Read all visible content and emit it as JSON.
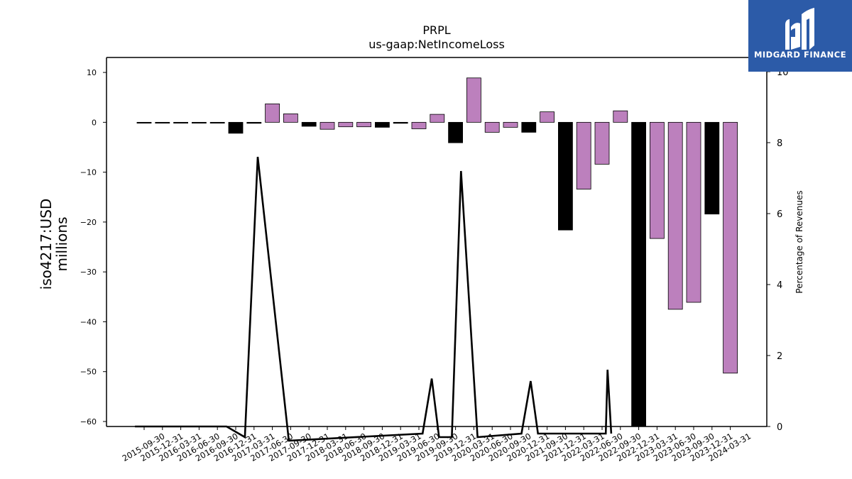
{
  "chart_data": {
    "type": "bar",
    "title": "PRPL",
    "subtitle": "us-gaap:NetIncomeLoss",
    "ylabel": "iso4217:USD\nmillions",
    "y2label": "Percentage of Revenues",
    "ylim": [
      -61,
      13
    ],
    "y2lim": [
      0,
      10.4
    ],
    "yticks": [
      10,
      0,
      -10,
      -20,
      -30,
      -40,
      -50,
      -60
    ],
    "y2ticks": [
      0,
      2,
      4,
      6,
      8,
      10
    ],
    "categories": [
      "2015-09-30",
      "2015-12-31",
      "2016-03-31",
      "2016-06-30",
      "2016-09-30",
      "2016-12-31",
      "2017-03-31",
      "2017-06-30",
      "2017-09-30",
      "2017-12-31",
      "2018-03-31",
      "2018-06-30",
      "2018-09-30",
      "2018-12-31",
      "2019-03-31",
      "2019-06-30",
      "2019-09-30",
      "2019-12-31",
      "2020-03-31",
      "2020-06-30",
      "2020-09-30",
      "2020-12-31",
      "2021-09-30",
      "2021-12-31",
      "2022-03-31",
      "2022-06-30",
      "2022-09-30",
      "2022-12-31",
      "2023-03-31",
      "2023-06-30",
      "2023-09-30",
      "2023-12-31",
      "2024-03-31"
    ],
    "values": [
      -0.1,
      -0.1,
      -0.05,
      -0.05,
      -0.1,
      -2.2,
      -0.2,
      3.7,
      1.7,
      -0.8,
      -1.4,
      -0.9,
      -0.9,
      -1.0,
      -0.2,
      -1.3,
      1.6,
      -4.1,
      8.9,
      -2.0,
      -1.0,
      -2.0,
      2.1,
      -21.6,
      -13.4,
      -8.4,
      2.3,
      -61,
      -23.3,
      -37.5,
      -36.1,
      -18.4,
      -50.3
    ],
    "bar_colors": [
      "#000000",
      "#000000",
      "#000000",
      "#000000",
      "#000000",
      "#000000",
      "#000000",
      "#bc80bd",
      "#bc80bd",
      "#000000",
      "#bc80bd",
      "#bc80bd",
      "#bc80bd",
      "#000000",
      "#000000",
      "#bc80bd",
      "#bc80bd",
      "#000000",
      "#bc80bd",
      "#bc80bd",
      "#bc80bd",
      "#000000",
      "#bc80bd",
      "#000000",
      "#bc80bd",
      "#bc80bd",
      "#bc80bd",
      "#000000",
      "#bc80bd",
      "#bc80bd",
      "#bc80bd",
      "#000000",
      "#bc80bd"
    ],
    "line_series": {
      "axis": "right",
      "color": "#000000",
      "points": [
        [
          -0.5,
          0
        ],
        [
          4.5,
          0
        ],
        [
          5.5,
          -0.3
        ],
        [
          6.2,
          7.6
        ],
        [
          7.9,
          -0.4
        ],
        [
          15.2,
          -0.2
        ],
        [
          15.7,
          1.35
        ],
        [
          16.1,
          -0.3
        ],
        [
          16.8,
          -0.3
        ],
        [
          17.3,
          7.2
        ],
        [
          18.2,
          -0.3
        ],
        [
          20.6,
          -0.2
        ],
        [
          21.1,
          1.28
        ],
        [
          21.5,
          -0.2
        ],
        [
          25.2,
          -0.2
        ],
        [
          25.3,
          1.6
        ],
        [
          25.5,
          -0.2
        ]
      ]
    }
  },
  "logo": {
    "text": "MIDGARD FINANCE",
    "color": "#2c5ba8"
  }
}
